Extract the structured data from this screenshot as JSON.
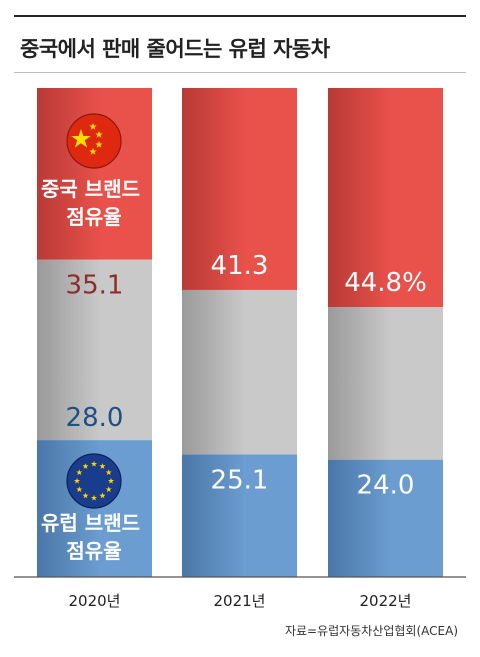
{
  "title": "중국에서 판매 줄어드는 유럽 자동차",
  "source": "자료=유럽자동차산업협회(ACEA)",
  "colors": {
    "china": "#e9514b",
    "china_dark": "#b83a36",
    "europe": "#6b9dd0",
    "europe_dark": "#4a77a8",
    "other": "#c9c9c9",
    "other_dark": "#9a9a9a",
    "label_china_text": "#8c2f2b",
    "label_europe_text": "#1f4f86"
  },
  "icons": {
    "china": "china-flag-icon",
    "europe": "eu-flag-icon"
  },
  "annotations": {
    "china_share": "중국 브랜드\n점유율",
    "europe_share": "유럽 브랜드\n점유율"
  },
  "chart_data": {
    "type": "bar",
    "stacked": true,
    "categories": [
      "2020년",
      "2021년",
      "2022년"
    ],
    "series": [
      {
        "name": "유럽 브랜드 점유율",
        "values": [
          28.0,
          25.1,
          24.0
        ],
        "labels": [
          "28.0",
          "25.1",
          "24.0"
        ]
      },
      {
        "name": "",
        "values": [
          36.9,
          33.6,
          31.2
        ],
        "labels": [
          "",
          "",
          ""
        ]
      },
      {
        "name": "중국 브랜드 점유율",
        "values": [
          35.1,
          41.3,
          44.8
        ],
        "labels": [
          "35.1",
          "41.3",
          "44.8%"
        ]
      }
    ],
    "ylim": [
      0,
      100
    ]
  }
}
